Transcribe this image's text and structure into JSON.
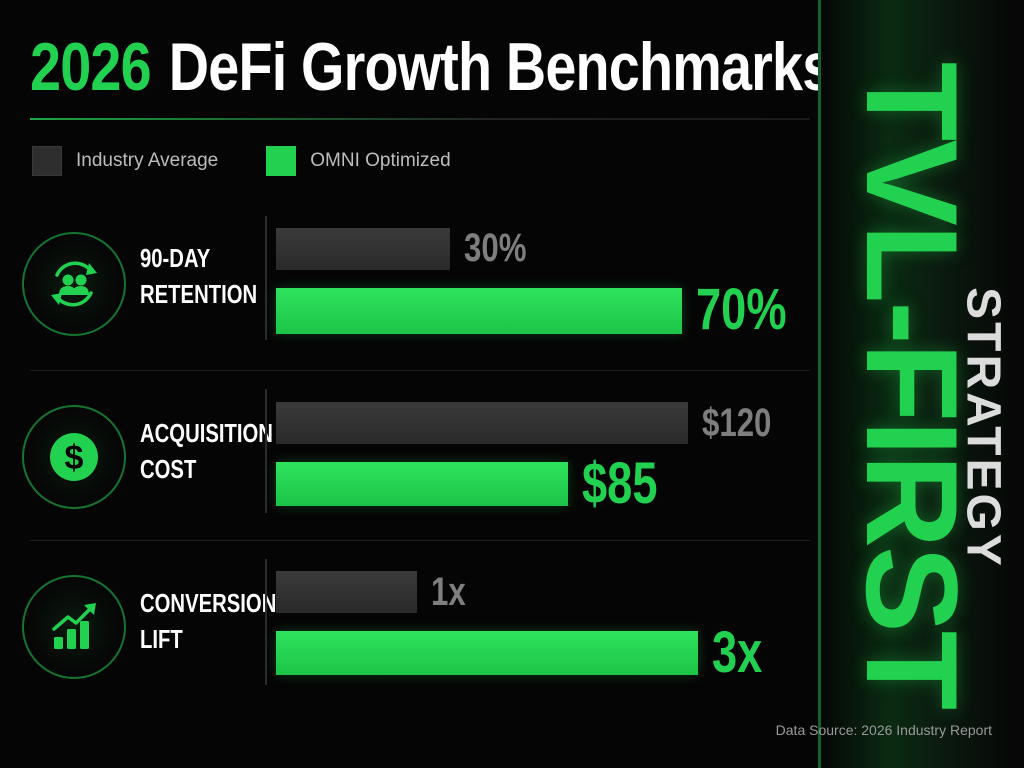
{
  "title": {
    "year": "2026",
    "rest": "DeFi Growth Benchmarks"
  },
  "legend": {
    "industry": "Industry Average",
    "omni": "OMNI Optimized"
  },
  "colors": {
    "accent": "#22d14f",
    "industry_bar": "#2e2e2e",
    "industry_text": "#7e7e7e"
  },
  "side": {
    "main": "TVL-FIRST",
    "sub": "STRATEGY"
  },
  "source": "Data Source: 2026 Industry Report",
  "chart_data": {
    "type": "bar",
    "orientation": "horizontal",
    "title": "2026 DeFi Growth Benchmarks",
    "categories": [
      "90-DAY RETENTION",
      "ACQUISITION COST",
      "CONVERSION LIFT"
    ],
    "series": [
      {
        "name": "Industry Average",
        "values": [
          30,
          120,
          1
        ],
        "labels": [
          "30%",
          "$120",
          "1x"
        ]
      },
      {
        "name": "OMNI Optimized",
        "values": [
          70,
          85,
          3
        ],
        "labels": [
          "70%",
          "$85",
          "3x"
        ]
      }
    ],
    "metrics": [
      {
        "line1": "90-DAY",
        "line2": "RETENTION",
        "icon": "users-cycle-icon",
        "max": 100
      },
      {
        "line1": "ACQUISITION",
        "line2": "COST",
        "icon": "dollar-icon",
        "max": 120
      },
      {
        "line1": "CONVERSION",
        "line2": "LIFT",
        "icon": "growth-chart-icon",
        "max": 3
      }
    ],
    "legend_position": "top-left",
    "grid": false
  }
}
